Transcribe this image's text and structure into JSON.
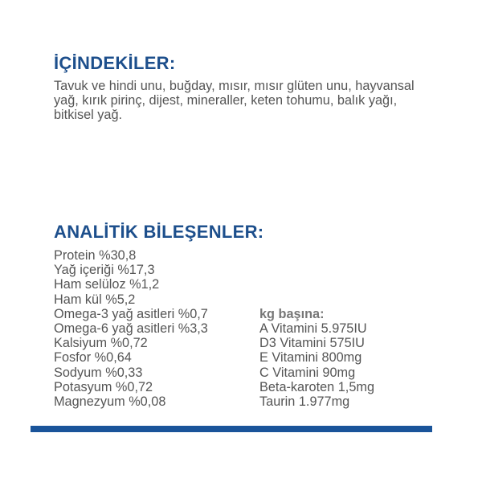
{
  "ingredients": {
    "title": "İÇİNDEKİLER:",
    "text": "Tavuk ve hindi unu, buğday, mısır, mısır glüten unu, hayvansal yağ, kırık pirinç, dijest, mineraller, keten tohumu, balık yağı, bitkisel yağ."
  },
  "analysis": {
    "title": "ANALİTİK BİLEŞENLER:",
    "left_items": [
      "Protein %30,8",
      "Yağ içeriği %17,3",
      "Ham selüloz %1,2",
      "Ham kül %5,2",
      "Omega-3 yağ asitleri %0,7",
      "Omega-6 yağ asitleri %3,3",
      "Kalsiyum %0,72",
      "Fosfor %0,64",
      "Sodyum %0,33",
      "Potasyum %0,72",
      "Magnezyum %0,08"
    ],
    "right_header": "kg başına:",
    "right_items": [
      "A Vitamini 5.975IU",
      "D3 Vitamini 575IU",
      "E Vitamini 800mg",
      "C Vitamini 90mg",
      "Beta-karoten 1,5mg",
      "Taurin 1.977mg"
    ]
  },
  "colors": {
    "heading": "#1d4f8c",
    "text": "#555555",
    "bar": "#1a549a"
  }
}
